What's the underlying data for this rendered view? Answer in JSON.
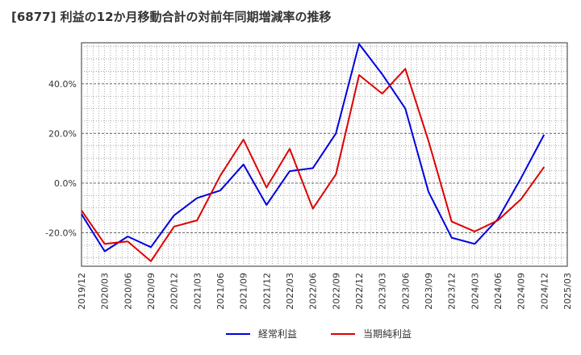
{
  "chart_data": {
    "type": "line",
    "title": "[6877]  利益の12か月移動合計の対前年同期増減率の推移",
    "xlabel": "",
    "ylabel": "",
    "ylim": [
      -33.5,
      56.5
    ],
    "yticks": [
      -20,
      0,
      20,
      40
    ],
    "ytick_labels": [
      "-20.0%",
      "0.0%",
      "20.0%",
      "40.0%"
    ],
    "categories": [
      "2019/12",
      "2020/03",
      "2020/06",
      "2020/09",
      "2020/12",
      "2021/03",
      "2021/06",
      "2021/09",
      "2021/12",
      "2022/03",
      "2022/06",
      "2022/09",
      "2022/12",
      "2023/03",
      "2023/06",
      "2023/09",
      "2023/12",
      "2024/03",
      "2024/06",
      "2024/09",
      "2024/12",
      "2025/03"
    ],
    "series": [
      {
        "name": "経常利益",
        "color": "#0000dd",
        "values": [
          -12.5,
          -27.5,
          -21.5,
          -25.8,
          -13.0,
          -6.0,
          -3.0,
          7.5,
          -8.8,
          4.8,
          6.0,
          20.0,
          56.0,
          43.8,
          30.0,
          -3.5,
          -22.0,
          -24.5,
          -14.5,
          2.0,
          19.5,
          null
        ]
      },
      {
        "name": "当期純利益",
        "color": "#dd0000",
        "values": [
          -11.0,
          -24.5,
          -23.5,
          -31.5,
          -17.5,
          -15.0,
          3.0,
          17.5,
          -1.8,
          13.8,
          -10.3,
          3.5,
          43.5,
          36.0,
          46.0,
          17.0,
          -15.5,
          -19.5,
          -15.0,
          -6.5,
          6.5,
          null
        ]
      }
    ],
    "legend_position": "bottom"
  }
}
